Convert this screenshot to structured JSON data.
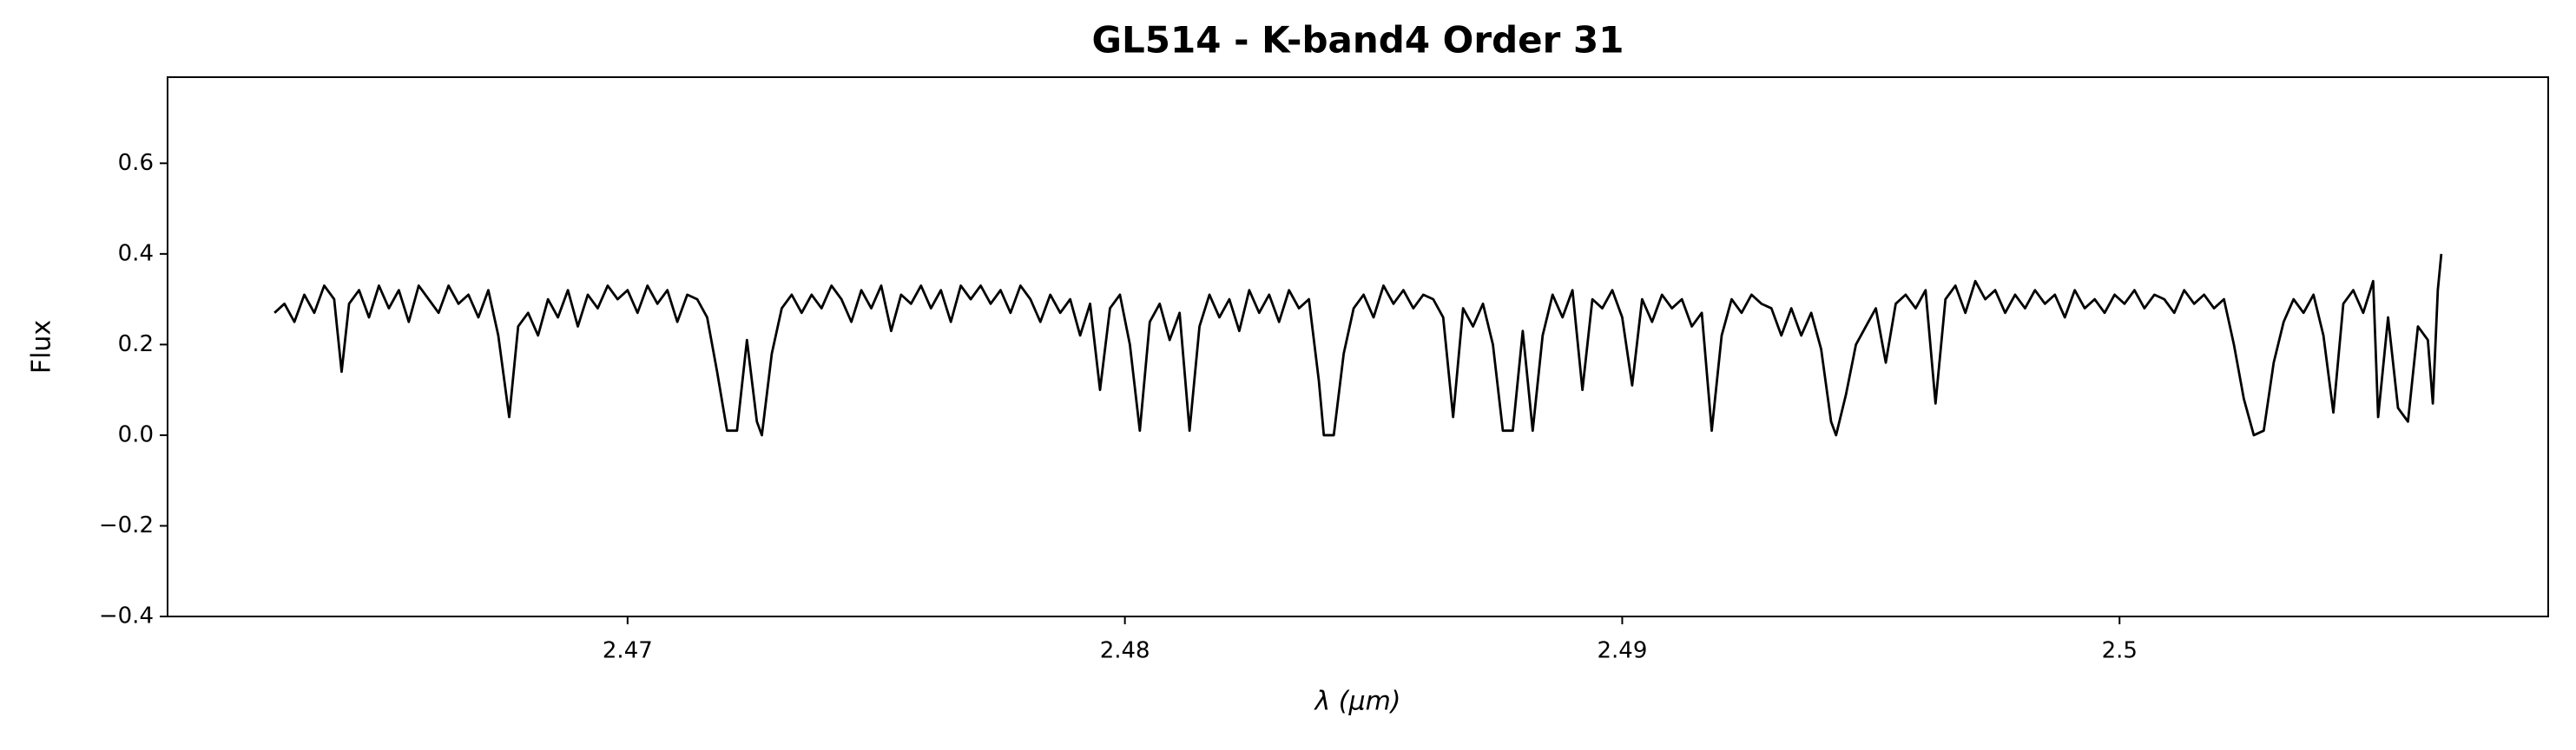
{
  "chart_data": {
    "type": "line",
    "title": "GL514 - K-band4 Order 31",
    "xlabel": "λ (μm)",
    "ylabel": "Flux",
    "color": "#000000",
    "x": [
      2.4629,
      2.4631,
      2.4633,
      2.4635,
      2.4637,
      2.4639,
      2.4641,
      2.46425,
      2.4644,
      2.4646,
      2.4648,
      2.465,
      2.4652,
      2.4654,
      2.4656,
      2.4658,
      2.466,
      2.4662,
      2.4664,
      2.4666,
      2.4668,
      2.467,
      2.4672,
      2.4674,
      2.46762,
      2.4678,
      2.468,
      2.4682,
      2.4684,
      2.4686,
      2.4688,
      2.469,
      2.4692,
      2.4694,
      2.4696,
      2.4698,
      2.47,
      2.4702,
      2.4704,
      2.4706,
      2.4708,
      2.471,
      2.4712,
      2.4714,
      2.4716,
      2.4718,
      2.472,
      2.4722,
      2.4724,
      2.4726,
      2.4727,
      2.4729,
      2.4731,
      2.4733,
      2.4735,
      2.4737,
      2.4739,
      2.4741,
      2.4743,
      2.4745,
      2.4747,
      2.4749,
      2.4751,
      2.4753,
      2.4755,
      2.4757,
      2.4759,
      2.4761,
      2.4763,
      2.4765,
      2.4767,
      2.4769,
      2.4771,
      2.4773,
      2.4775,
      2.4777,
      2.4779,
      2.4781,
      2.4783,
      2.4785,
      2.4787,
      2.4789,
      2.4791,
      2.4793,
      2.4795,
      2.4797,
      2.4799,
      2.4801,
      2.4803,
      2.4805,
      2.4807,
      2.4809,
      2.4811,
      2.4813,
      2.4815,
      2.4817,
      2.4819,
      2.4821,
      2.4823,
      2.4825,
      2.4827,
      2.4829,
      2.4831,
      2.4833,
      2.4835,
      2.4837,
      2.4839,
      2.484,
      2.4842,
      2.4844,
      2.4846,
      2.4848,
      2.485,
      2.4852,
      2.4854,
      2.4856,
      2.4858,
      2.486,
      2.4862,
      2.4864,
      2.4866,
      2.4868,
      2.487,
      2.4872,
      2.4874,
      2.4876,
      2.4878,
      2.488,
      2.4882,
      2.4884,
      2.4886,
      2.4888,
      2.489,
      2.4892,
      2.4894,
      2.4896,
      2.4898,
      2.49,
      2.4902,
      2.4904,
      2.4906,
      2.4908,
      2.491,
      2.4912,
      2.4914,
      2.4916,
      2.4918,
      2.492,
      2.4922,
      2.4924,
      2.4926,
      2.4928,
      2.493,
      2.4932,
      2.4934,
      2.4936,
      2.4938,
      2.494,
      2.4942,
      2.4943,
      2.4945,
      2.4947,
      2.4949,
      2.4951,
      2.4953,
      2.4955,
      2.4957,
      2.4959,
      2.4961,
      2.4963,
      2.4965,
      2.4967,
      2.4969,
      2.4971,
      2.4973,
      2.4975,
      2.4977,
      2.4979,
      2.4981,
      2.4983,
      2.4985,
      2.4987,
      2.4989,
      2.4991,
      2.4993,
      2.4995,
      2.4997,
      2.4999,
      2.5001,
      2.5003,
      2.5005,
      2.5007,
      2.5009,
      2.5011,
      2.5013,
      2.5015,
      2.5017,
      2.5019,
      2.5021,
      2.5023,
      2.5025,
      2.5027,
      2.5029,
      2.5031,
      2.5033,
      2.5035,
      2.5037,
      2.5039,
      2.5041,
      2.5043,
      2.5045,
      2.5047,
      2.5049,
      2.5051,
      2.5052,
      2.5054,
      2.5056,
      2.5058,
      2.506,
      2.5062,
      2.5063,
      2.5064,
      2.50647
    ],
    "values": [
      0.27,
      0.29,
      0.25,
      0.31,
      0.27,
      0.33,
      0.3,
      0.14,
      0.29,
      0.32,
      0.26,
      0.33,
      0.28,
      0.32,
      0.25,
      0.33,
      0.3,
      0.27,
      0.33,
      0.29,
      0.31,
      0.26,
      0.32,
      0.22,
      0.04,
      0.24,
      0.27,
      0.22,
      0.3,
      0.26,
      0.32,
      0.24,
      0.31,
      0.28,
      0.33,
      0.3,
      0.32,
      0.27,
      0.33,
      0.29,
      0.32,
      0.25,
      0.31,
      0.3,
      0.26,
      0.14,
      0.01,
      0.01,
      0.21,
      0.03,
      0.0,
      0.18,
      0.28,
      0.31,
      0.27,
      0.31,
      0.28,
      0.33,
      0.3,
      0.25,
      0.32,
      0.28,
      0.33,
      0.23,
      0.31,
      0.29,
      0.33,
      0.28,
      0.32,
      0.25,
      0.33,
      0.3,
      0.33,
      0.29,
      0.32,
      0.27,
      0.33,
      0.3,
      0.25,
      0.31,
      0.27,
      0.3,
      0.22,
      0.29,
      0.1,
      0.28,
      0.31,
      0.2,
      0.01,
      0.25,
      0.29,
      0.21,
      0.27,
      0.01,
      0.24,
      0.31,
      0.26,
      0.3,
      0.23,
      0.32,
      0.27,
      0.31,
      0.25,
      0.32,
      0.28,
      0.3,
      0.12,
      0.0,
      0.0,
      0.18,
      0.28,
      0.31,
      0.26,
      0.33,
      0.29,
      0.32,
      0.28,
      0.31,
      0.3,
      0.26,
      0.04,
      0.28,
      0.24,
      0.29,
      0.2,
      0.01,
      0.01,
      0.23,
      0.01,
      0.22,
      0.31,
      0.26,
      0.32,
      0.1,
      0.3,
      0.28,
      0.32,
      0.26,
      0.11,
      0.3,
      0.25,
      0.31,
      0.28,
      0.3,
      0.24,
      0.27,
      0.01,
      0.22,
      0.3,
      0.27,
      0.31,
      0.29,
      0.28,
      0.22,
      0.28,
      0.22,
      0.27,
      0.19,
      0.03,
      0.0,
      0.09,
      0.2,
      0.24,
      0.28,
      0.16,
      0.29,
      0.31,
      0.28,
      0.32,
      0.07,
      0.3,
      0.33,
      0.27,
      0.34,
      0.3,
      0.32,
      0.27,
      0.31,
      0.28,
      0.32,
      0.29,
      0.31,
      0.26,
      0.32,
      0.28,
      0.3,
      0.27,
      0.31,
      0.29,
      0.32,
      0.28,
      0.31,
      0.3,
      0.27,
      0.32,
      0.29,
      0.31,
      0.28,
      0.3,
      0.2,
      0.08,
      0.0,
      0.01,
      0.16,
      0.25,
      0.3,
      0.27,
      0.31,
      0.22,
      0.05,
      0.29,
      0.32,
      0.27,
      0.34,
      0.04,
      0.26,
      0.06,
      0.03,
      0.24,
      0.21,
      0.07,
      0.32,
      0.4
    ],
    "xlim": [
      2.46075,
      2.50862
    ],
    "xticks": [
      2.47,
      2.48,
      2.49,
      2.5
    ],
    "xtick_labels_fixed": null,
    "ylim": [
      -0.4,
      0.79
    ],
    "yticks": [
      {
        "value": -0.4,
        "label": "−0.4"
      },
      {
        "value": -0.2,
        "label": "−0.2"
      },
      {
        "value": 0,
        "label": "0.0"
      },
      0.2,
      0.4,
      0.6
    ],
    "grid": false
  }
}
